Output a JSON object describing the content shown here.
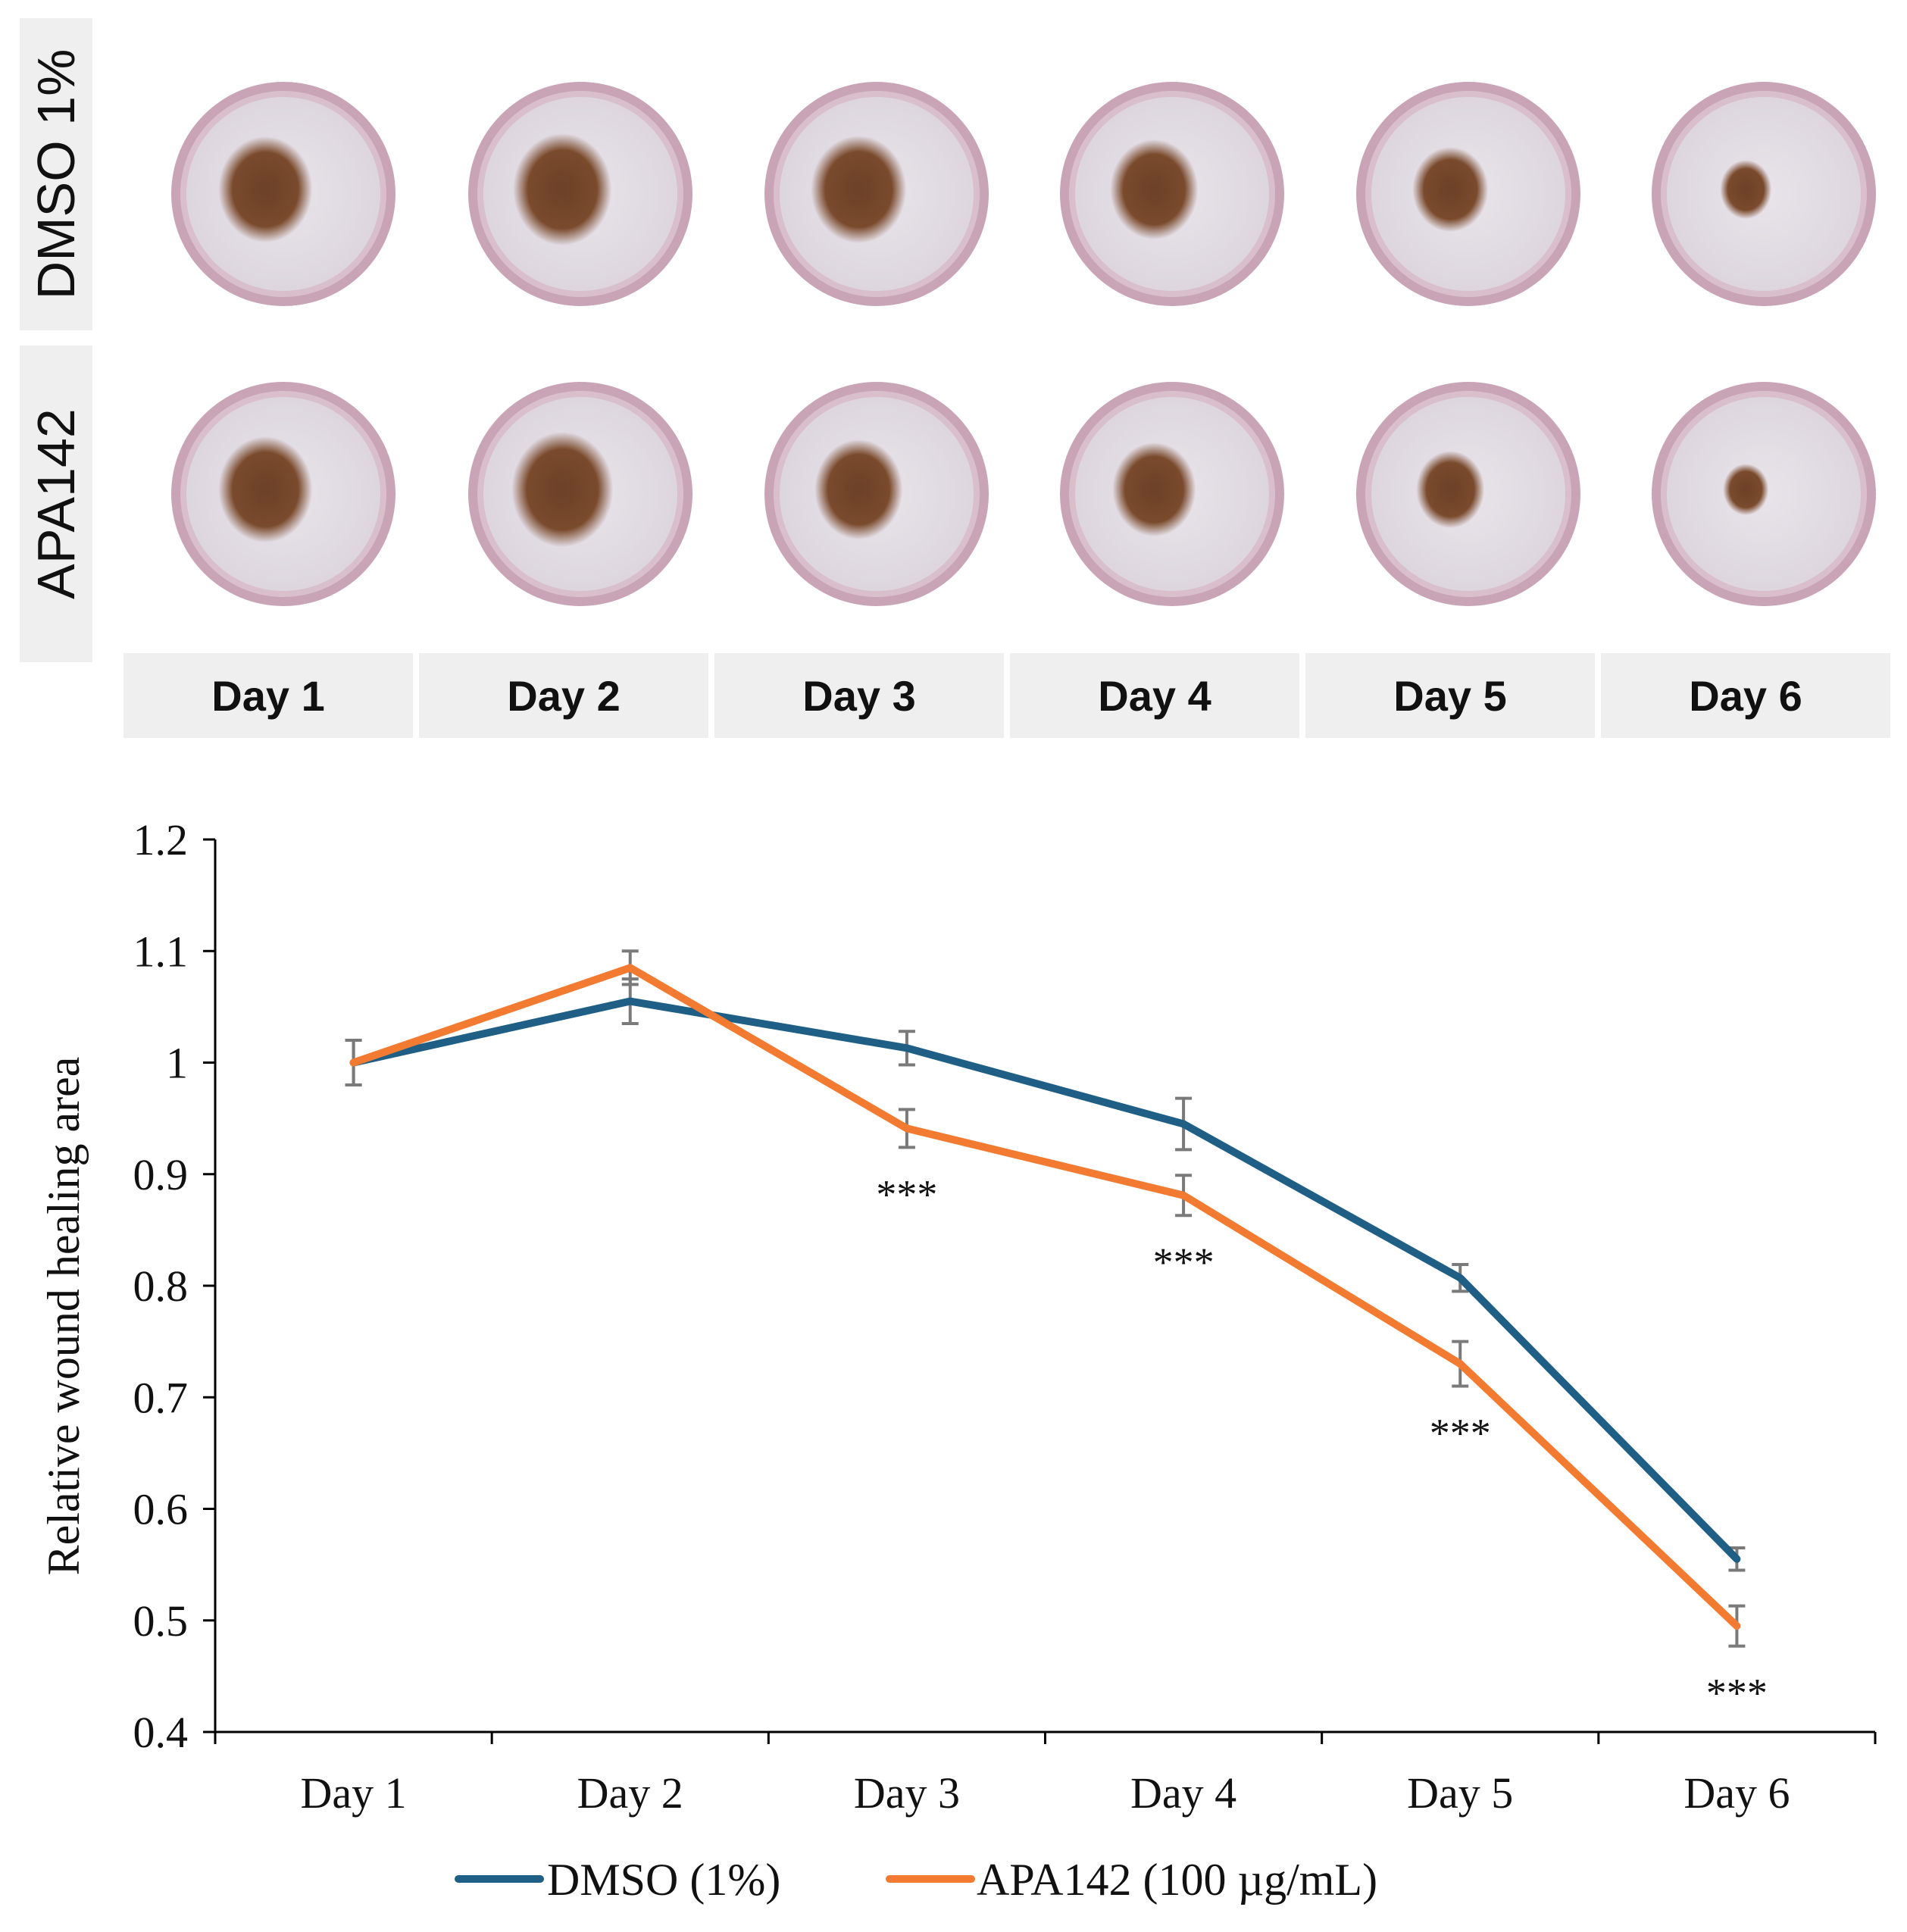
{
  "panel": {
    "rows": [
      {
        "label": "DMSO 1%",
        "wound": [
          1.0,
          1.05,
          1.01,
          0.94,
          0.8,
          0.55
        ]
      },
      {
        "label": "APA142",
        "wound": [
          1.0,
          1.08,
          0.94,
          0.88,
          0.73,
          0.49
        ]
      }
    ],
    "days": [
      "Day 1",
      "Day 2",
      "Day 3",
      "Day 4",
      "Day 5",
      "Day 6"
    ],
    "colors": {
      "well": "#d8c4d2",
      "fur": "#e9e4ea",
      "wound": "#6b4128",
      "rim": "#c9a3b6"
    }
  },
  "chart_data": {
    "type": "line",
    "categories": [
      "Day 1",
      "Day 2",
      "Day 3",
      "Day 4",
      "Day 5",
      "Day 6"
    ],
    "series": [
      {
        "name": "DMSO (1%)",
        "color": "#1f5f86",
        "values": [
          1.0,
          1.055,
          1.013,
          0.945,
          0.807,
          0.555
        ],
        "errors": [
          0.02,
          0.02,
          0.015,
          0.023,
          0.012,
          0.01
        ]
      },
      {
        "name": "APA142 (100 µg/mL)",
        "color": "#f27a31",
        "values": [
          1.0,
          1.085,
          0.941,
          0.881,
          0.73,
          0.495
        ],
        "errors": [
          0.02,
          0.015,
          0.017,
          0.018,
          0.02,
          0.018
        ]
      }
    ],
    "significance": [
      "",
      "",
      "***",
      "***",
      "***",
      "***"
    ],
    "ylabel": "Relative wound healing area",
    "xlabel": "",
    "ylim": [
      0.4,
      1.2
    ],
    "yticks": [
      "0.4",
      "0.5",
      "0.6",
      "0.7",
      "0.8",
      "0.9",
      "1",
      "1.1",
      "1.2"
    ],
    "legend": "bottom-center",
    "grid": false
  }
}
